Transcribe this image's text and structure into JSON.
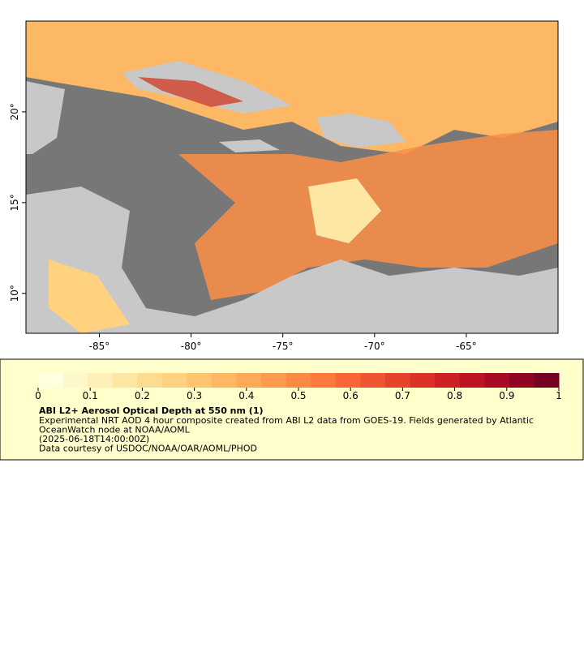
{
  "map": {
    "xlim": [
      -89,
      -60
    ],
    "ylim": [
      7.8,
      25
    ],
    "xticks": [
      {
        "value": -85,
        "label": "-85°"
      },
      {
        "value": -80,
        "label": "-80°"
      },
      {
        "value": -75,
        "label": "-75°"
      },
      {
        "value": -70,
        "label": "-70°"
      },
      {
        "value": -65,
        "label": "-65°"
      }
    ],
    "yticks": [
      {
        "value": 10,
        "label": "10°"
      },
      {
        "value": 15,
        "label": "15°"
      },
      {
        "value": 20,
        "label": "20°"
      }
    ]
  },
  "legend": {
    "colorbar": {
      "lim": [
        0,
        1
      ],
      "ticks": [
        0,
        0.1,
        0.2,
        0.3,
        0.4,
        0.5,
        0.6,
        0.7,
        0.8,
        0.9,
        1
      ],
      "colors": [
        "#ffffe0",
        "#fff7cc",
        "#ffefb8",
        "#fee6a3",
        "#fedc8f",
        "#fed27e",
        "#fec56e",
        "#feb762",
        "#fda957",
        "#fd9a4d",
        "#fc8a44",
        "#fb793c",
        "#f66735",
        "#ef5530",
        "#e6432b",
        "#db3127",
        "#ce2125",
        "#bd1424",
        "#a80b24",
        "#900423",
        "#780022"
      ]
    },
    "title": "ABI L2+ Aerosol Optical Depth at 550 nm (1)",
    "lines": [
      "Experimental NRT AOD 4 hour composite created from ABI L2 data from GOES-19. Fields generated by Atlantic",
      "OceanWatch node at NOAA/AOML",
      "(2025-06-18T14:00:00Z)",
      "Data courtesy of USDOC/NOAA/OAR/AOML/PHOD"
    ]
  }
}
